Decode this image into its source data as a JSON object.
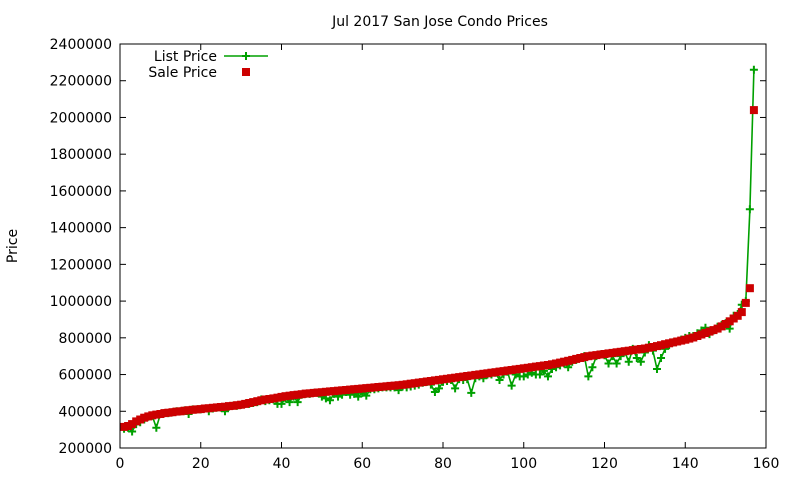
{
  "chart_data": {
    "type": "line",
    "title": "Jul 2017 San Jose Condo Prices",
    "xlabel": "",
    "ylabel": "Price",
    "xlim": [
      0,
      160
    ],
    "ylim": [
      200000,
      2400000
    ],
    "x_ticks": [
      "0",
      "20",
      "40",
      "60",
      "80",
      "100",
      "120",
      "140",
      "160"
    ],
    "y_ticks": [
      "200000",
      "400000",
      "600000",
      "800000",
      "1000000",
      "1200000",
      "1400000",
      "1600000",
      "1800000",
      "2000000",
      "2200000",
      "2400000"
    ],
    "grid": false,
    "legend_position": "top-left",
    "x": [
      1,
      2,
      3,
      4,
      5,
      6,
      7,
      8,
      9,
      10,
      11,
      12,
      13,
      14,
      15,
      16,
      17,
      18,
      19,
      20,
      21,
      22,
      23,
      24,
      25,
      26,
      27,
      28,
      29,
      30,
      31,
      32,
      33,
      34,
      35,
      36,
      37,
      38,
      39,
      40,
      41,
      42,
      43,
      44,
      45,
      46,
      47,
      48,
      49,
      50,
      51,
      52,
      53,
      54,
      55,
      56,
      57,
      58,
      59,
      60,
      61,
      62,
      63,
      64,
      65,
      66,
      67,
      68,
      69,
      70,
      71,
      72,
      73,
      74,
      75,
      76,
      77,
      78,
      79,
      80,
      81,
      82,
      83,
      84,
      85,
      86,
      87,
      88,
      89,
      90,
      91,
      92,
      93,
      94,
      95,
      96,
      97,
      98,
      99,
      100,
      101,
      102,
      103,
      104,
      105,
      106,
      107,
      108,
      109,
      110,
      111,
      112,
      113,
      114,
      115,
      116,
      117,
      118,
      119,
      120,
      121,
      122,
      123,
      124,
      125,
      126,
      127,
      128,
      129,
      130,
      131,
      132,
      133,
      134,
      135,
      136,
      137,
      138,
      139,
      140,
      141,
      142,
      143,
      144,
      145,
      146,
      147,
      148,
      149,
      150,
      151,
      152,
      153,
      154,
      155,
      156,
      157
    ],
    "series": [
      {
        "name": "List Price",
        "color": "#00a000",
        "marker": "plus",
        "values": [
          305000,
          310000,
          290000,
          330000,
          340000,
          355000,
          370000,
          375000,
          310000,
          385000,
          390000,
          390000,
          395000,
          400000,
          400000,
          405000,
          385000,
          410000,
          410000,
          410000,
          415000,
          400000,
          415000,
          420000,
          420000,
          400000,
          425000,
          430000,
          430000,
          435000,
          440000,
          440000,
          445000,
          450000,
          465000,
          455000,
          460000,
          465000,
          440000,
          440000,
          470000,
          450000,
          480000,
          450000,
          490000,
          495000,
          495000,
          500000,
          500000,
          480000,
          470000,
          460000,
          495000,
          480000,
          490000,
          505000,
          490000,
          495000,
          480000,
          500000,
          485000,
          520000,
          520000,
          525000,
          530000,
          530000,
          530000,
          530000,
          515000,
          535000,
          530000,
          535000,
          540000,
          545000,
          555000,
          560000,
          545000,
          505000,
          525000,
          560000,
          565000,
          570000,
          525000,
          575000,
          570000,
          575000,
          500000,
          580000,
          590000,
          580000,
          600000,
          600000,
          610000,
          570000,
          600000,
          615000,
          540000,
          600000,
          590000,
          590000,
          600000,
          610000,
          600000,
          600000,
          620000,
          590000,
          630000,
          640000,
          650000,
          660000,
          640000,
          670000,
          680000,
          690000,
          700000,
          590000,
          640000,
          700000,
          710000,
          705000,
          660000,
          700000,
          660000,
          700000,
          725000,
          670000,
          740000,
          690000,
          670000,
          720000,
          760000,
          730000,
          630000,
          690000,
          740000,
          760000,
          775000,
          780000,
          790000,
          800000,
          810000,
          810000,
          825000,
          840000,
          855000,
          820000,
          840000,
          860000,
          870000,
          880000,
          850000,
          920000,
          930000,
          980000,
          1000000,
          1500000,
          2260000
        ]
      },
      {
        "name": "Sale Price",
        "color": "#cc0000",
        "marker": "square",
        "values": [
          315000,
          320000,
          330000,
          345000,
          355000,
          365000,
          372000,
          378000,
          382000,
          385000,
          390000,
          392000,
          395000,
          398000,
          400000,
          403000,
          406000,
          408000,
          410000,
          412000,
          415000,
          417000,
          419000,
          421000,
          423000,
          425000,
          428000,
          430000,
          433000,
          436000,
          440000,
          445000,
          450000,
          455000,
          460000,
          464000,
          467000,
          470000,
          474000,
          478000,
          482000,
          485000,
          488000,
          490000,
          493000,
          496000,
          498000,
          500000,
          502000,
          504000,
          506000,
          508000,
          510000,
          512000,
          514000,
          516000,
          518000,
          520000,
          522000,
          524000,
          526000,
          528000,
          530000,
          532000,
          534000,
          536000,
          538000,
          540000,
          542000,
          544000,
          547000,
          550000,
          553000,
          556000,
          559000,
          562000,
          565000,
          568000,
          571000,
          574000,
          577000,
          580000,
          583000,
          586000,
          589000,
          592000,
          595000,
          598000,
          601000,
          604000,
          607000,
          610000,
          613000,
          616000,
          619000,
          622000,
          625000,
          628000,
          631000,
          634000,
          637000,
          640000,
          643000,
          646000,
          649000,
          652000,
          656000,
          660000,
          665000,
          670000,
          675000,
          680000,
          685000,
          690000,
          695000,
          700000,
          703000,
          706000,
          709000,
          712000,
          715000,
          718000,
          721000,
          724000,
          727000,
          730000,
          733000,
          736000,
          739000,
          742000,
          746000,
          750000,
          755000,
          760000,
          765000,
          770000,
          775000,
          780000,
          785000,
          790000,
          796000,
          802000,
          810000,
          818000,
          826000,
          834000,
          842000,
          850000,
          862000,
          875000,
          890000,
          905000,
          920000,
          940000,
          990000,
          1070000,
          2040000
        ]
      }
    ]
  }
}
